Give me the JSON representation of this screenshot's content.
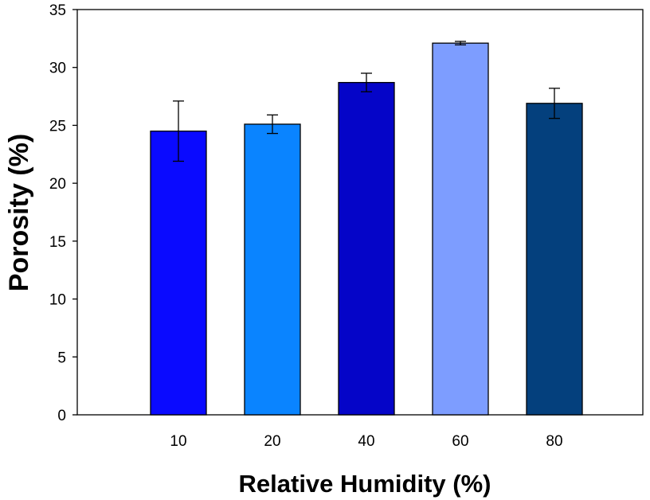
{
  "chart_data": {
    "type": "bar",
    "title": "",
    "xlabel": "Relative Humidity (%)",
    "ylabel": "Porosity (%)",
    "categories": [
      "10",
      "20",
      "40",
      "60",
      "80"
    ],
    "values": [
      24.5,
      25.1,
      28.7,
      32.1,
      26.9
    ],
    "errors": [
      2.6,
      0.8,
      0.8,
      0.15,
      1.3
    ],
    "colors": [
      "#0a0aff",
      "#0a84ff",
      "#0505c8",
      "#7d9dff",
      "#04407d"
    ],
    "ylim": [
      0,
      35
    ],
    "yticks": [
      0,
      5,
      10,
      15,
      20,
      25,
      30,
      35
    ],
    "grid": false,
    "legend": "none"
  }
}
